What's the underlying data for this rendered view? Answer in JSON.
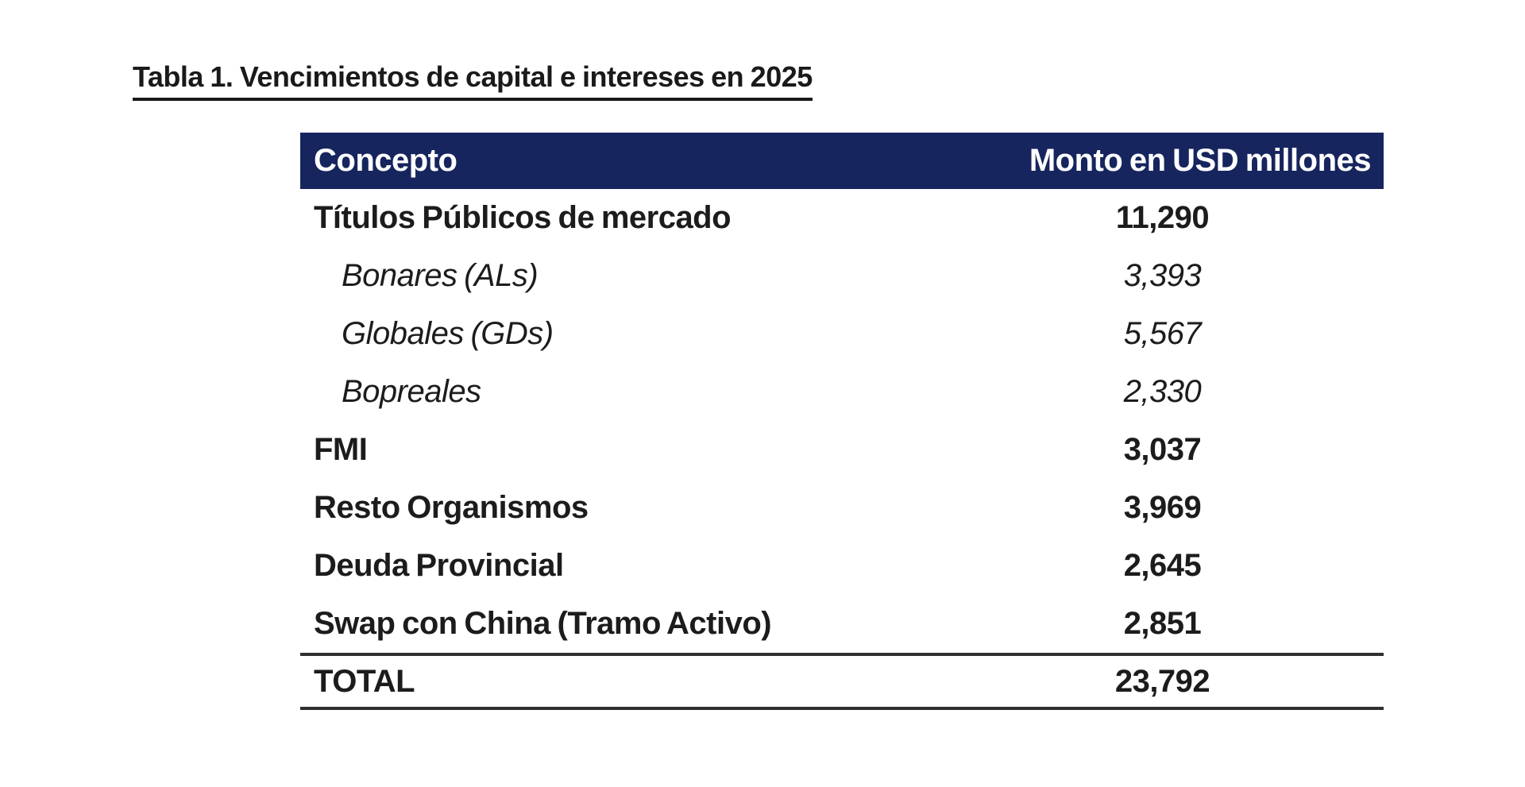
{
  "page": {
    "title": "Tabla 1. Vencimientos de capital e intereses en 2025"
  },
  "table": {
    "header": {
      "concept": "Concepto",
      "amount": "Monto en USD millones"
    },
    "rows": [
      {
        "label": "Títulos Públicos de mercado",
        "value": "11,290",
        "style": "main"
      },
      {
        "label": "Bonares (ALs)",
        "value": "3,393",
        "style": "sub"
      },
      {
        "label": "Globales (GDs)",
        "value": "5,567",
        "style": "sub"
      },
      {
        "label": "Bopreales",
        "value": "2,330",
        "style": "sub"
      },
      {
        "label": "FMI",
        "value": "3,037",
        "style": "main"
      },
      {
        "label": "Resto Organismos",
        "value": "3,969",
        "style": "main"
      },
      {
        "label": "Deuda Provincial",
        "value": "2,645",
        "style": "main"
      },
      {
        "label": "Swap con China (Tramo Activo)",
        "value": "2,851",
        "style": "main"
      }
    ],
    "total": {
      "label": "TOTAL",
      "value": "23,792"
    },
    "colors": {
      "header_bg": "#17255e",
      "header_text": "#ffffff",
      "body_text": "#1c1c1c",
      "rule": "#2f2f2f"
    }
  },
  "chart_data": {
    "type": "table",
    "title": "Tabla 1. Vencimientos de capital e intereses en 2025",
    "columns": [
      "Concepto",
      "Monto en USD millones"
    ],
    "categories": [
      "Títulos Públicos de mercado",
      "Bonares (ALs)",
      "Globales (GDs)",
      "Bopreales",
      "FMI",
      "Resto Organismos",
      "Deuda Provincial",
      "Swap con China (Tramo Activo)",
      "TOTAL"
    ],
    "values": [
      11290,
      3393,
      5567,
      2330,
      3037,
      3969,
      2645,
      2851,
      23792
    ]
  }
}
